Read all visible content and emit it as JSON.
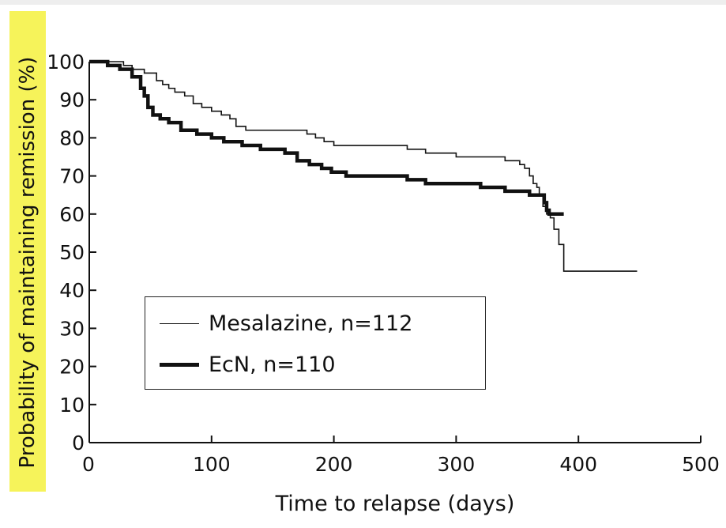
{
  "chart_data": {
    "type": "line",
    "title": "",
    "xlabel": "Time to relapse (days)",
    "ylabel": "Probability of maintaining remission (%)",
    "xlim": [
      0,
      500
    ],
    "ylim": [
      0,
      100
    ],
    "x_ticks": [
      "0",
      "100",
      "200",
      "300",
      "400",
      "500"
    ],
    "y_ticks": [
      "0",
      "10",
      "20",
      "30",
      "40",
      "50",
      "60",
      "70",
      "80",
      "90",
      "100"
    ],
    "grid": false,
    "legend_position": "bottom-left",
    "series": [
      {
        "name": "Mesalazine, n=112",
        "style": "thin",
        "color": "#111111",
        "x": [
          0,
          28,
          35,
          45,
          55,
          60,
          65,
          70,
          78,
          85,
          92,
          100,
          108,
          115,
          120,
          128,
          132,
          138,
          150,
          168,
          178,
          185,
          192,
          200,
          210,
          230,
          260,
          275,
          285,
          300,
          320,
          335,
          340,
          348,
          352,
          356,
          360,
          363,
          366,
          368,
          371,
          374,
          377,
          380,
          384,
          388,
          448
        ],
        "y": [
          100,
          99,
          98,
          97,
          95,
          94,
          93,
          92,
          91,
          89,
          88,
          87,
          86,
          85,
          83,
          82,
          82,
          82,
          82,
          82,
          81,
          80,
          79,
          78,
          78,
          78,
          77,
          76,
          76,
          75,
          75,
          75,
          74,
          74,
          73,
          72,
          70,
          68,
          67,
          65,
          62,
          60,
          59,
          56,
          52,
          45,
          45
        ]
      },
      {
        "name": "EcN, n=110",
        "style": "thick",
        "color": "#111111",
        "x": [
          0,
          15,
          25,
          35,
          42,
          45,
          48,
          52,
          58,
          65,
          75,
          88,
          100,
          110,
          125,
          140,
          160,
          170,
          180,
          190,
          198,
          210,
          230,
          260,
          275,
          300,
          320,
          340,
          350,
          360,
          366,
          370,
          372,
          374,
          376,
          380,
          388
        ],
        "y": [
          100,
          99,
          98,
          96,
          93,
          91,
          88,
          86,
          85,
          84,
          82,
          81,
          80,
          79,
          78,
          77,
          76,
          74,
          73,
          72,
          71,
          70,
          70,
          69,
          68,
          68,
          67,
          66,
          66,
          65,
          65,
          65,
          63,
          61,
          60,
          60,
          60
        ]
      }
    ]
  }
}
